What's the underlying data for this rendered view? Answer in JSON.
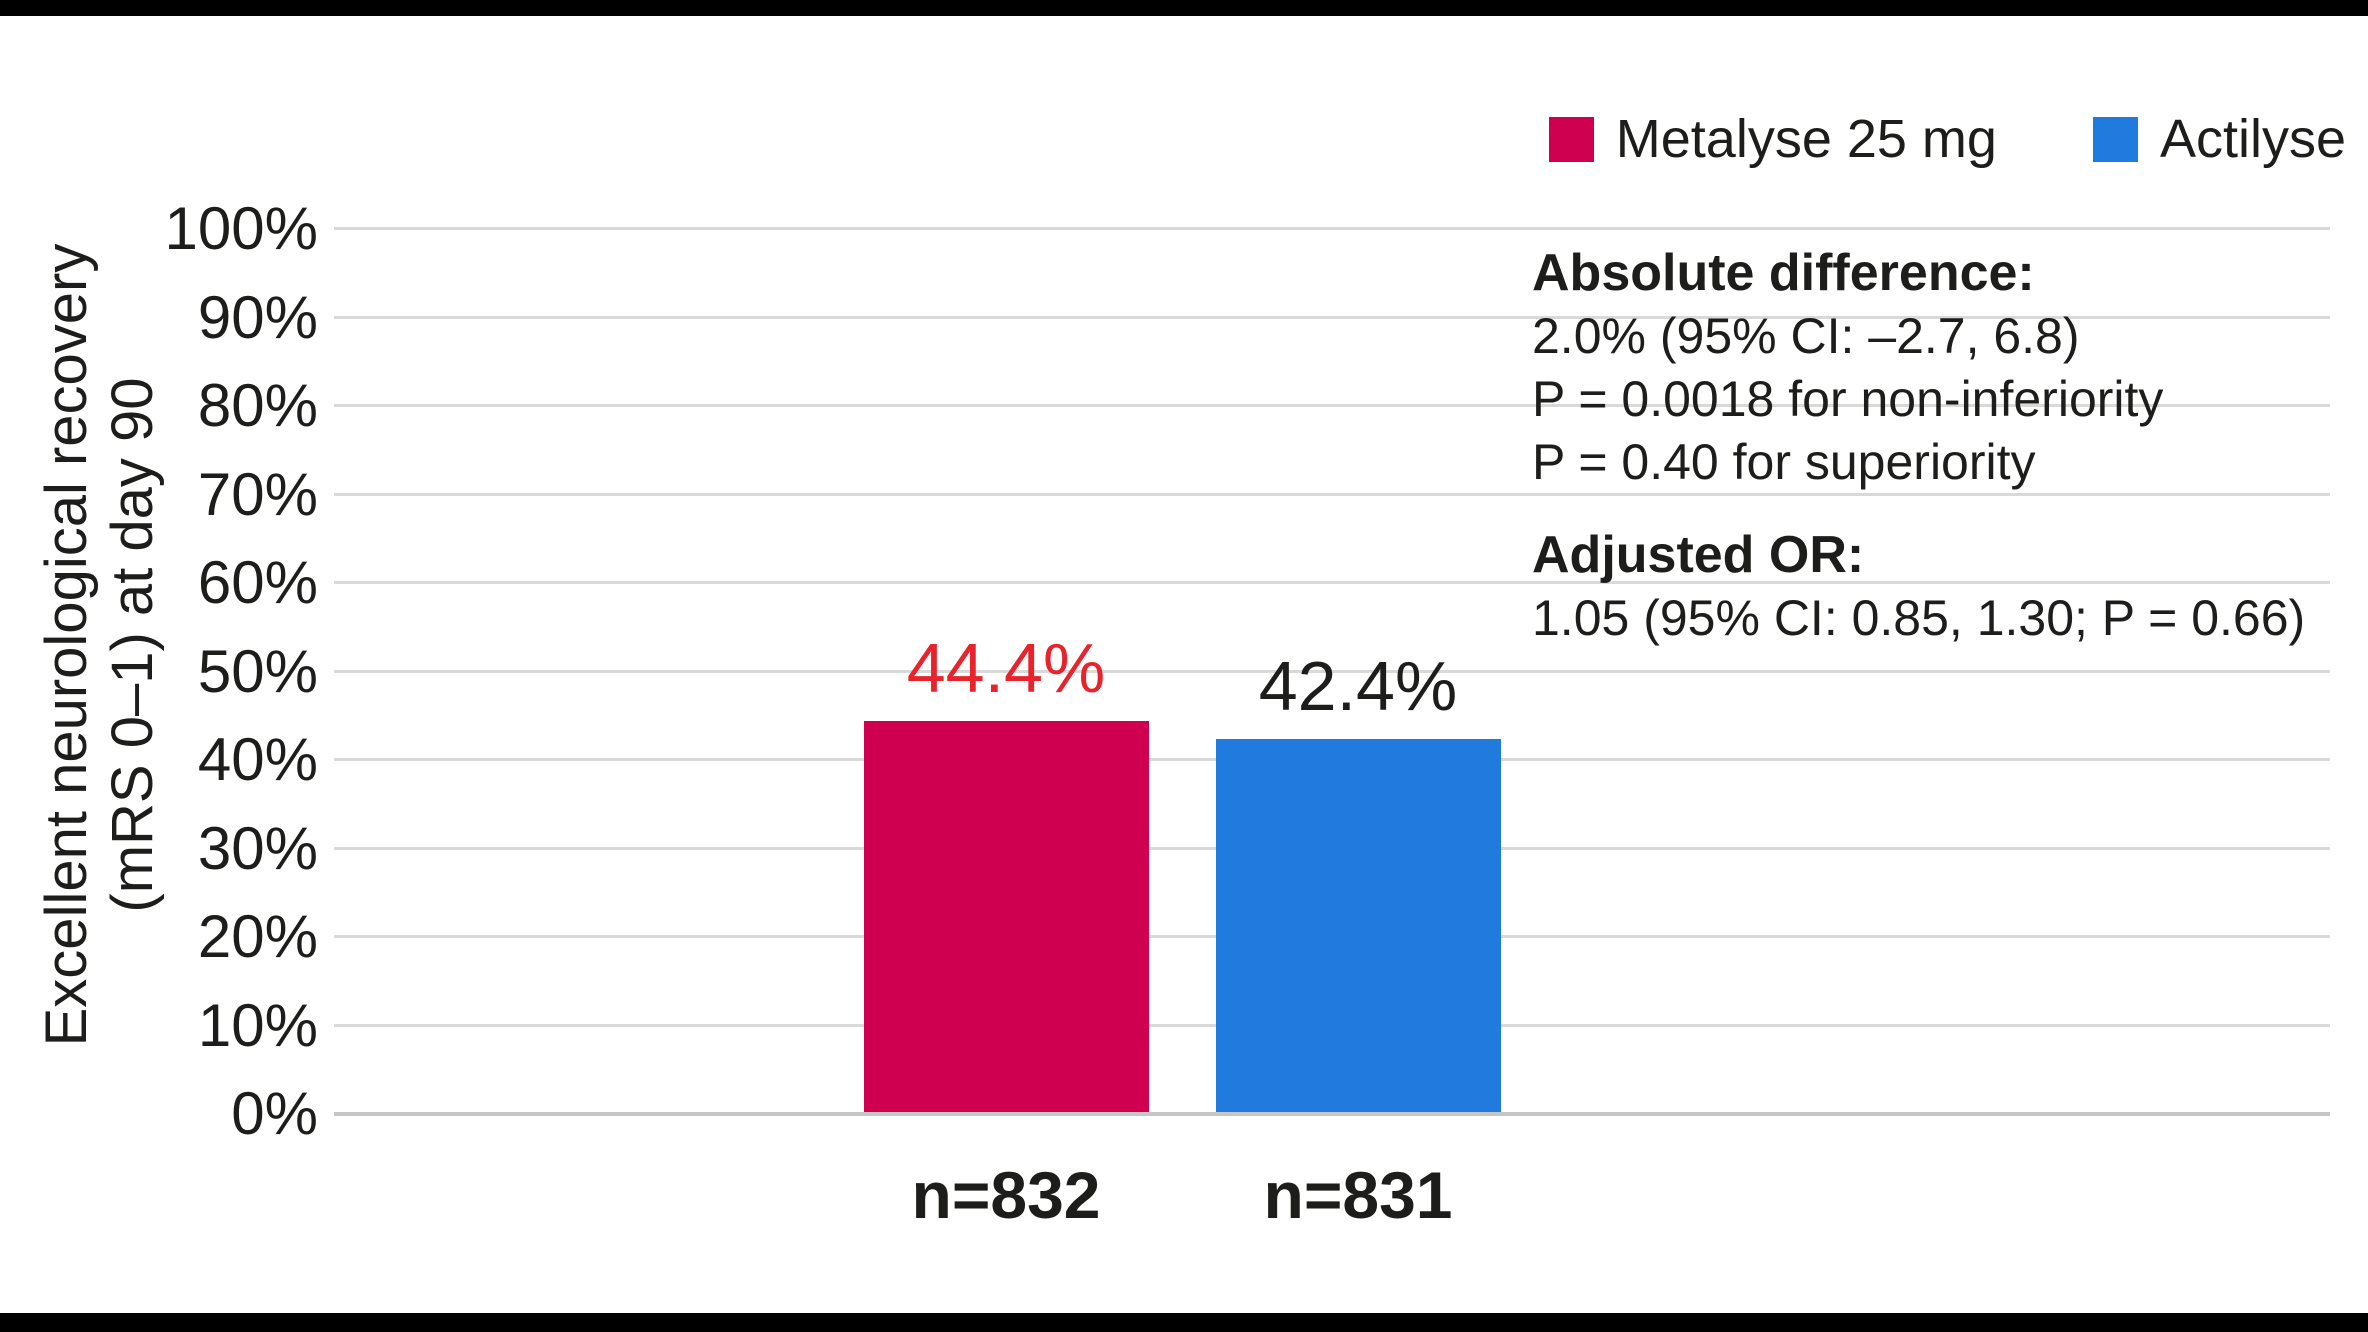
{
  "legend": {
    "items": [
      {
        "label": "Metalyse 25 mg",
        "color": "#d00050"
      },
      {
        "label": "Actilyse",
        "color": "#217ade"
      }
    ]
  },
  "y_axis": {
    "title_line1": "Excellent neurological recovery",
    "title_line2": "(mRS 0–1) at day 90"
  },
  "annotation": {
    "block1_title": "Absolute difference:",
    "block1_lines": [
      "2.0% (95% CI: –2.7, 6.8)",
      "P = 0.0018 for non-inferiority",
      "P = 0.40 for superiority"
    ],
    "block2_title": "Adjusted OR:",
    "block2_lines": [
      "1.05 (95% CI: 0.85, 1.30; P = 0.66)"
    ]
  },
  "chart_data": {
    "type": "bar",
    "title": "",
    "xlabel": "",
    "ylabel": "Excellent neurological recovery (mRS 0–1) at day 90",
    "ylim": [
      0,
      100
    ],
    "grid": true,
    "legend_position": "top-right",
    "yticks": [
      "100%",
      "90%",
      "80%",
      "70%",
      "60%",
      "50%",
      "40%",
      "30%",
      "20%",
      "10%",
      "0%"
    ],
    "ytick_values": [
      100,
      90,
      80,
      70,
      60,
      50,
      40,
      30,
      20,
      10,
      0
    ],
    "categories": [
      "n=832",
      "n=831"
    ],
    "bars": [
      {
        "id": "metalyse-25mg",
        "series": "Metalyse 25 mg",
        "n_label": "n=832",
        "value": 44.4,
        "value_label": "44.4%",
        "color": "#d00050",
        "value_label_color": "#e8232b"
      },
      {
        "id": "actilyse",
        "series": "Actilyse",
        "n_label": "n=831",
        "value": 42.4,
        "value_label": "42.4%",
        "color": "#217ade",
        "value_label_color": "#1d1d1b"
      }
    ]
  }
}
